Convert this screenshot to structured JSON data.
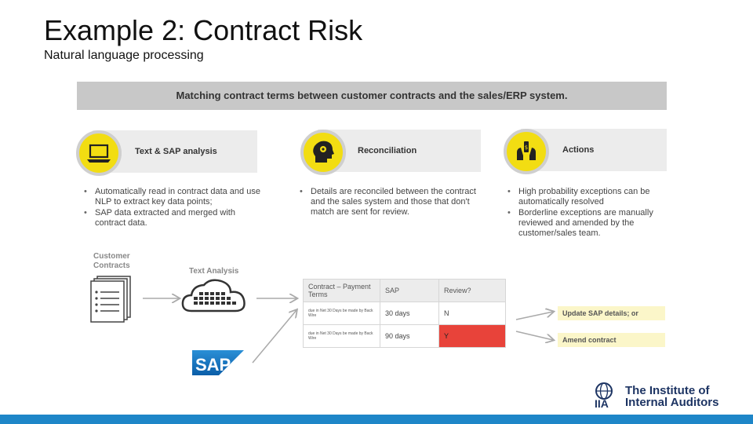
{
  "slide": {
    "title": "Example 2: Contract Risk",
    "subtitle": "Natural language processing"
  },
  "banner": "Matching contract terms between customer contracts and the sales/ERP system.",
  "stages": [
    {
      "label": "Text & SAP analysis",
      "icon": "laptop-icon",
      "bullets": [
        "Automatically read in contract data and use NLP to extract key data points;",
        "SAP data extracted and merged with contract data."
      ]
    },
    {
      "label": "Reconciliation",
      "icon": "head-gears-icon",
      "bullets": [
        "Details are reconciled between the contract and the sales system and those that don't match are sent for review."
      ]
    },
    {
      "label": "Actions",
      "icon": "hand-dollar-icon",
      "bullets": [
        "High probability exceptions can be automatically resolved",
        "Borderline exceptions are manually reviewed and amended by the customer/sales team."
      ]
    }
  ],
  "flow": {
    "customer_contracts": "Customer Contracts",
    "text_analysis": "Text Analysis",
    "sap_logo": "SAP"
  },
  "table": {
    "headers": [
      "Contract – Payment Terms",
      "SAP",
      "Review?"
    ],
    "rows": [
      {
        "contract": "due in Net 30 Days be made by Back Wire",
        "sap": "30 days",
        "review": "N"
      },
      {
        "contract": "due in Net 30 Days be made by Back Wire",
        "sap": "90 days",
        "review": "Y"
      }
    ]
  },
  "actions": [
    "Update SAP details; or",
    "Amend contract"
  ],
  "footer": {
    "org_mark": "IIA",
    "org_line1": "The Institute of",
    "org_line2": "Internal Auditors"
  },
  "colors": {
    "accent_yellow": "#f2dd12",
    "flag_red": "#e8433a",
    "bar_blue": "#1e86c8",
    "iia_navy": "#1d3463"
  }
}
